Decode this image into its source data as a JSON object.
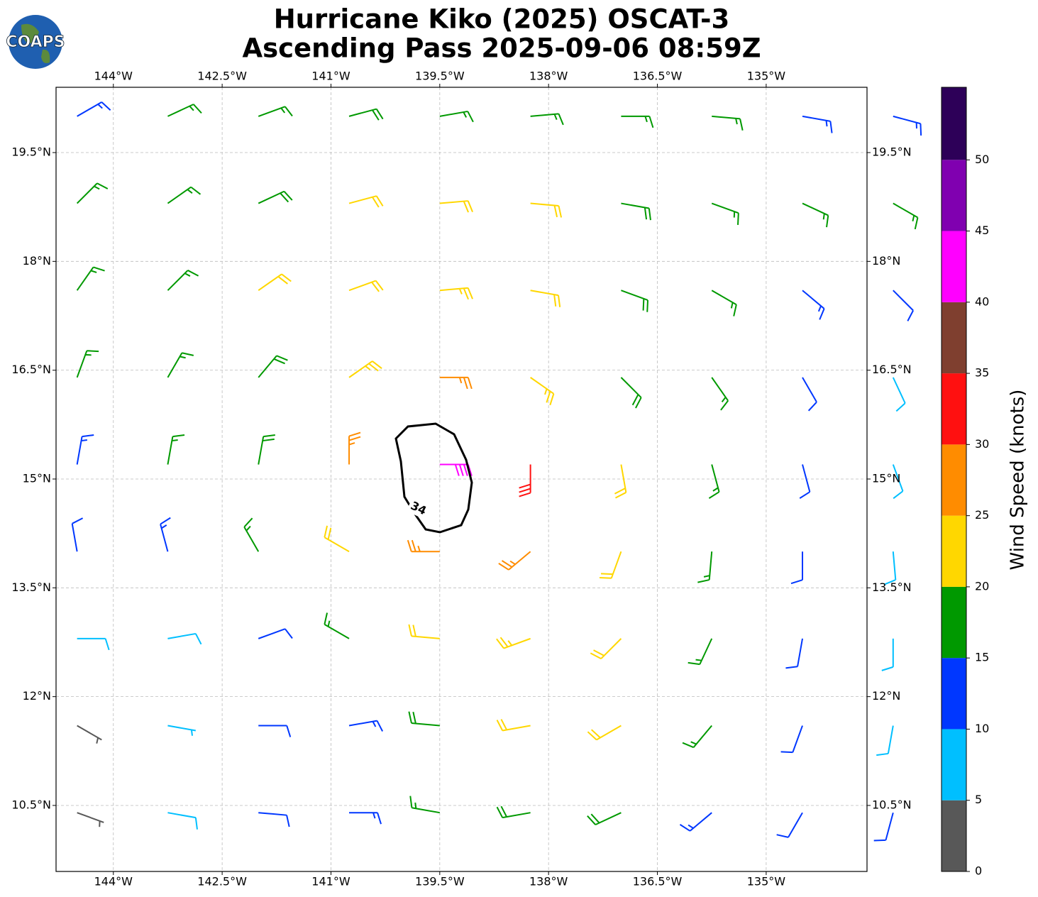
{
  "chart_data": {
    "type": "barbs",
    "logo_text": "COAPS",
    "title": [
      "Hurricane Kiko (2025) OSCAT-3",
      "Ascending Pass 2025-09-06 08:59Z"
    ],
    "colorbar_label": "Wind Speed (knots)",
    "xlim": [
      -144.79,
      -133.61
    ],
    "ylim": [
      9.59,
      20.4
    ],
    "xticks": [
      {
        "value": -144,
        "label": "144°W"
      },
      {
        "value": -142.5,
        "label": "142.5°W"
      },
      {
        "value": -141,
        "label": "141°W"
      },
      {
        "value": -139.5,
        "label": "139.5°W"
      },
      {
        "value": -138,
        "label": "138°W"
      },
      {
        "value": -136.5,
        "label": "136.5°W"
      },
      {
        "value": -135,
        "label": "135°W"
      }
    ],
    "yticks": [
      {
        "value": 10.5,
        "label": "10.5°N"
      },
      {
        "value": 12,
        "label": "12°N"
      },
      {
        "value": 13.5,
        "label": "13.5°N"
      },
      {
        "value": 15,
        "label": "15°N"
      },
      {
        "value": 16.5,
        "label": "16.5°N"
      },
      {
        "value": 18,
        "label": "18°N"
      },
      {
        "value": 19.5,
        "label": "19.5°N"
      }
    ],
    "grid": true,
    "clim": [
      0,
      55.1
    ],
    "cticks": [
      0,
      5,
      10,
      15,
      20,
      25,
      30,
      35,
      40,
      45,
      50
    ],
    "cbounds": [
      0,
      5,
      10,
      15,
      20,
      25,
      30,
      35,
      40,
      45,
      50,
      55.1
    ],
    "colors": [
      "#585858",
      "#00bfff",
      "#0037ff",
      "#009900",
      "#ffd700",
      "#ff8c00",
      "#ff1010",
      "#7f3f2f",
      "#ff00ff",
      "#8000b0",
      "#2d0058"
    ],
    "contour_level": 34,
    "lons": [
      -144.5,
      -143.25,
      -142,
      -140.75,
      -139.5,
      -138.25,
      -137,
      -135.75,
      -134.5,
      -133.25
    ],
    "lats": [
      20.0,
      18.8,
      17.6,
      16.4,
      15.2,
      14.0,
      12.8,
      11.6,
      10.4
    ],
    "speed": [
      [
        14,
        16,
        17,
        18,
        17,
        17,
        16,
        15,
        14,
        13
      ],
      [
        16,
        17,
        18,
        21,
        22,
        21,
        18,
        17,
        16,
        15
      ],
      [
        16,
        17,
        20,
        22,
        24,
        22,
        19,
        17,
        14,
        12
      ],
      [
        15,
        17,
        19,
        23,
        27,
        23,
        19,
        16,
        11,
        9
      ],
      [
        13,
        15,
        18,
        26,
        42,
        31,
        21,
        16,
        10,
        8
      ],
      [
        11,
        13,
        16,
        22,
        27,
        25,
        21,
        15,
        10,
        8
      ],
      [
        8,
        9,
        12,
        16,
        20,
        24,
        22,
        17,
        12,
        9
      ],
      [
        3,
        7,
        10,
        14,
        18,
        22,
        21,
        16,
        12,
        9
      ],
      [
        4,
        8,
        11,
        14,
        17,
        19,
        18,
        14,
        12,
        10
      ]
    ],
    "direction": [
      [
        60,
        65,
        70,
        75,
        80,
        85,
        90,
        95,
        100,
        105
      ],
      [
        45,
        55,
        65,
        75,
        85,
        95,
        100,
        110,
        115,
        120
      ],
      [
        35,
        45,
        55,
        70,
        85,
        100,
        110,
        120,
        130,
        135
      ],
      [
        20,
        30,
        40,
        55,
        90,
        125,
        135,
        145,
        150,
        155
      ],
      [
        10,
        10,
        10,
        0,
        90,
        180,
        170,
        165,
        165,
        160
      ],
      [
        350,
        345,
        330,
        300,
        270,
        230,
        200,
        185,
        180,
        175
      ],
      [
        90,
        80,
        70,
        300,
        275,
        250,
        225,
        205,
        190,
        180
      ],
      [
        120,
        100,
        90,
        80,
        275,
        260,
        240,
        220,
        200,
        190
      ],
      [
        110,
        100,
        95,
        90,
        280,
        260,
        245,
        230,
        210,
        195
      ]
    ]
  }
}
